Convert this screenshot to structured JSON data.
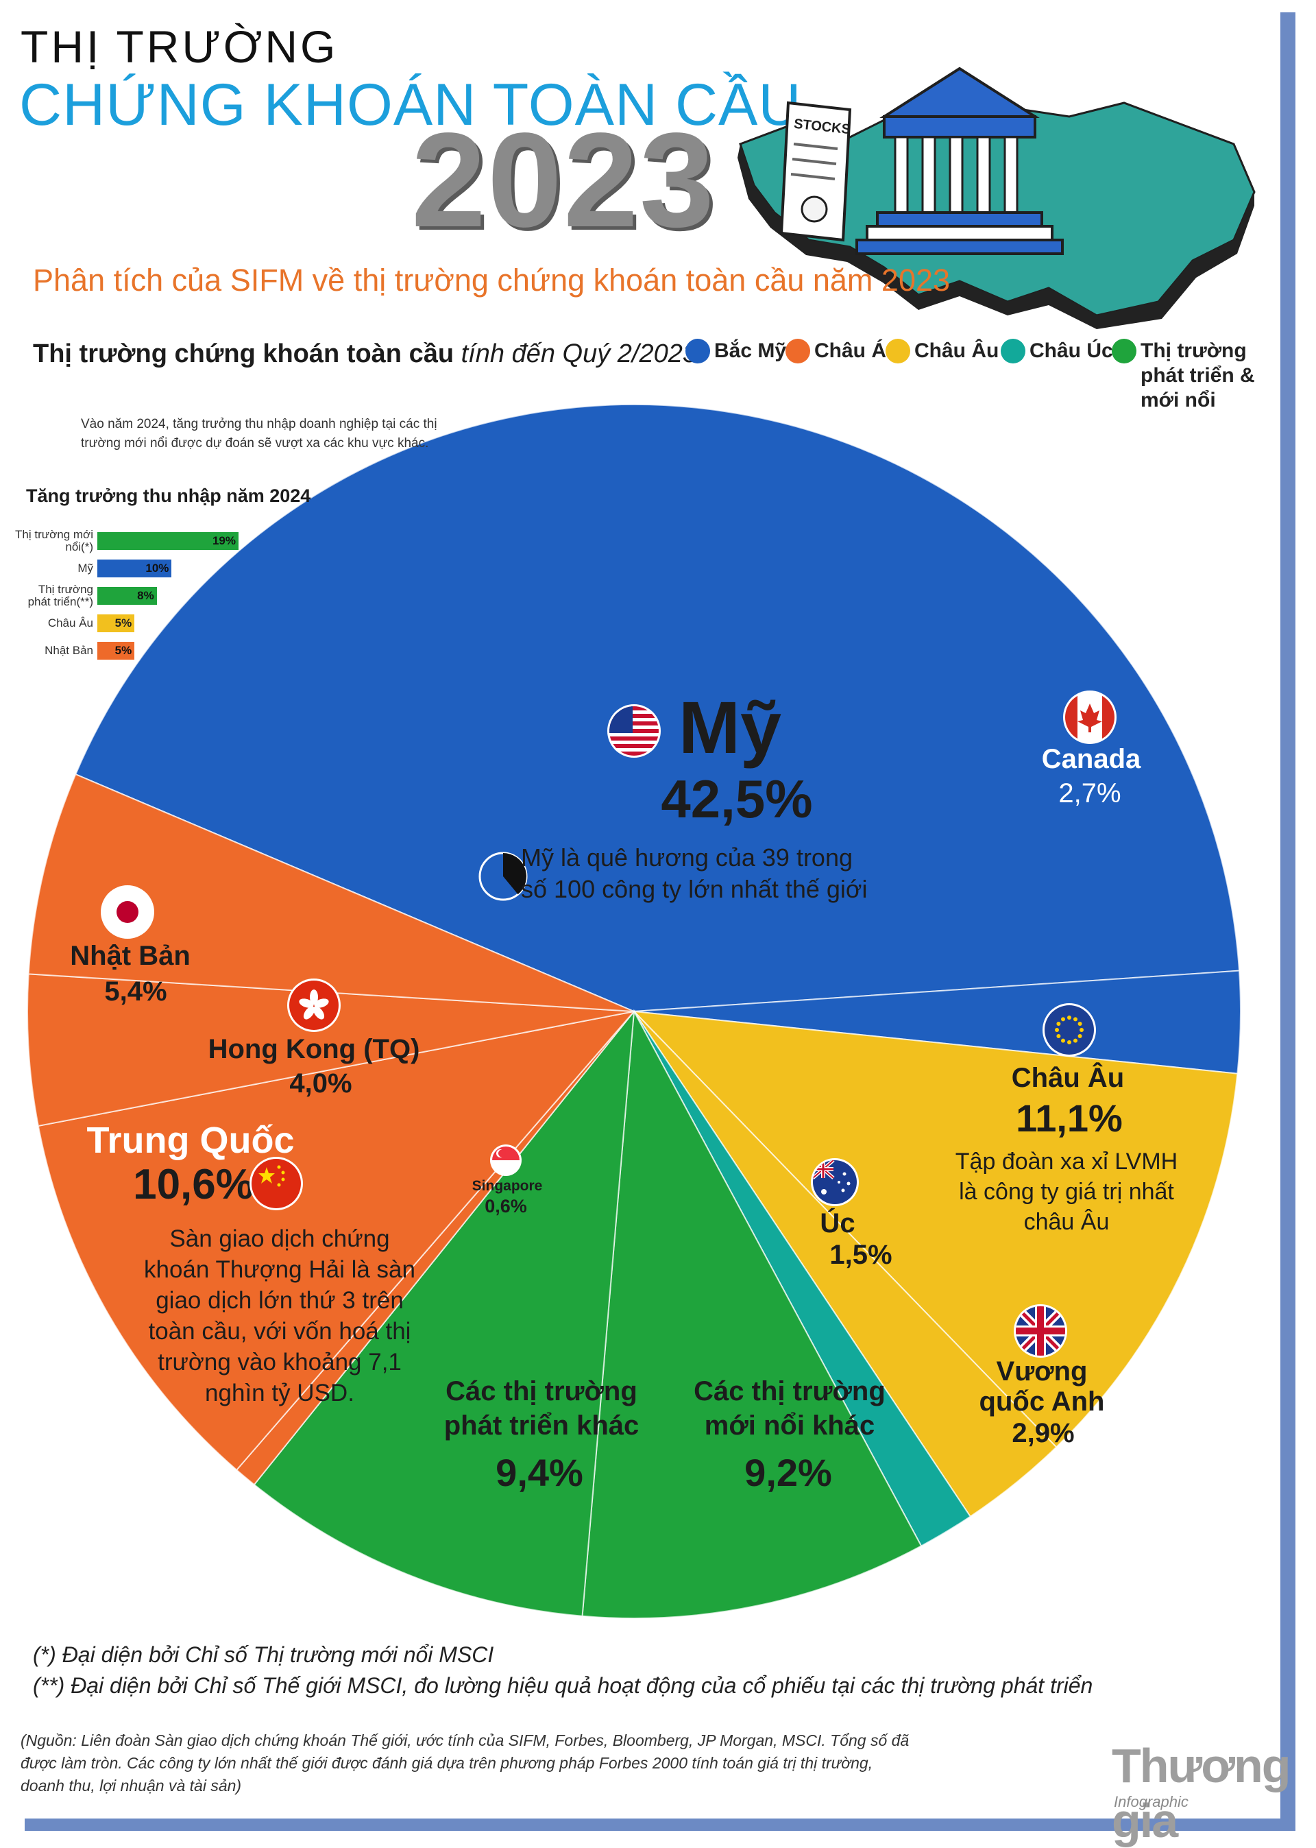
{
  "header": {
    "line1": "THỊ TRƯỜNG",
    "line2": "CHỨNG KHOÁN TOÀN CẦU",
    "year": "2023",
    "stocks_doc_text": "STOCKS",
    "subtitle": "Phân tích của SIFM về thị trường chứng khoán toàn cầu năm 2023"
  },
  "section": {
    "title_bold": "Thị trường chứng khoán toàn cầu",
    "title_italic": "tính đến Quý 2/2023"
  },
  "legend": [
    {
      "label": "Bắc Mỹ",
      "color": "#1f5fbf"
    },
    {
      "label": "Châu Á",
      "color": "#ee6a2a"
    },
    {
      "label": "Châu Âu",
      "color": "#f2c01e"
    },
    {
      "label": "Châu Úc",
      "color": "#12a99a"
    },
    {
      "label": "Thị trường phát triển & mới nổi",
      "color": "#1fa43c"
    }
  ],
  "earnings_2024": {
    "note": "Vào năm 2024, tăng trưởng thu nhập doanh nghiệp tại các thị trường mới nổi được dự đoán sẽ vượt xa các khu vực khác.",
    "title": "Tăng trưởng thu nhập năm 2024",
    "bars": [
      {
        "label": "Thị trường mới nổi(*)",
        "value": 19,
        "value_text": "19%",
        "color": "#1fa43c"
      },
      {
        "label": "Mỹ",
        "value": 10,
        "value_text": "10%",
        "color": "#1f5fbf"
      },
      {
        "label": "Thị trường phát triển(**)",
        "value": 8,
        "value_text": "8%",
        "color": "#1fa43c"
      },
      {
        "label": "Châu Âu",
        "value": 5,
        "value_text": "5%",
        "color": "#f2c01e"
      },
      {
        "label": "Nhật Bản",
        "value": 5,
        "value_text": "5%",
        "color": "#ee6a2a"
      }
    ]
  },
  "chart_data": {
    "type": "pie",
    "title": "Thị trường chứng khoán toàn cầu tính đến Quý 2/2023",
    "unit": "%",
    "slices": [
      {
        "name": "Mỹ",
        "value": 42.5,
        "value_text": "42,5%",
        "region": "Bắc Mỹ",
        "color": "#1f5fbf",
        "note": "Mỹ là quê hương của 39 trong số 100 công ty lớn nhất thế giới",
        "inset_fraction": 0.39
      },
      {
        "name": "Canada",
        "value": 2.7,
        "value_text": "2,7%",
        "region": "Bắc Mỹ",
        "color": "#1f5fbf"
      },
      {
        "name": "Châu Âu",
        "value": 11.1,
        "value_text": "11,1%",
        "region": "Châu Âu",
        "color": "#f2c01e",
        "note": "Tập đoàn xa xỉ LVMH là công ty giá trị nhất châu Âu"
      },
      {
        "name": "Vương quốc Anh",
        "value": 2.9,
        "value_text": "2,9%",
        "region": "Châu Âu",
        "color": "#f2c01e"
      },
      {
        "name": "Úc",
        "value": 1.5,
        "value_text": "1,5%",
        "region": "Châu Úc",
        "color": "#12a99a"
      },
      {
        "name": "Các thị trường mới nổi khác",
        "value": 9.2,
        "value_text": "9,2%",
        "region": "Thị trường phát triển & mới nổi",
        "color": "#1fa43c"
      },
      {
        "name": "Các thị trường phát triển khác",
        "value": 9.4,
        "value_text": "9,4%",
        "region": "Thị trường phát triển & mới nổi",
        "color": "#1fa43c"
      },
      {
        "name": "Singapore",
        "value": 0.6,
        "value_text": "0,6%",
        "region": "Châu Á",
        "color": "#ee6a2a"
      },
      {
        "name": "Trung Quốc",
        "value": 10.6,
        "value_text": "10,6%",
        "region": "Châu Á",
        "color": "#ee6a2a",
        "note": "Sàn giao dịch chứng khoán Thượng Hải là sàn giao dịch lớn thứ 3 trên toàn cầu, với vốn hoá thị trường vào khoảng 7,1 nghìn tỷ USD."
      },
      {
        "name": "Hong Kong (TQ)",
        "value": 4.0,
        "value_text": "4,0%",
        "region": "Châu Á",
        "color": "#ee6a2a"
      },
      {
        "name": "Nhật Bản",
        "value": 5.4,
        "value_text": "5,4%",
        "region": "Châu Á",
        "color": "#ee6a2a"
      }
    ]
  },
  "footnotes": {
    "f1": "(*) Đại diện bởi Chỉ số Thị trường mới nổi MSCI",
    "f2": "(**) Đại diện bởi Chỉ số Thế giới MSCI, đo lường hiệu quả hoạt động của cổ phiếu tại các thị trường phát triển",
    "source": "(Nguồn: Liên đoàn Sàn giao dịch chứng khoán Thế giới, ước tính của SIFM, Forbes, Bloomberg, JP Morgan, MSCI. Tổng số đã được làm tròn. Các công ty lớn nhất thế giới được đánh giá dựa trên phương pháp Forbes 2000 tính toán giá trị thị trường, doanh thu, lợi nhuận và tài sản)"
  },
  "brand": {
    "name": "Thương gia",
    "sub": "Infographic"
  }
}
